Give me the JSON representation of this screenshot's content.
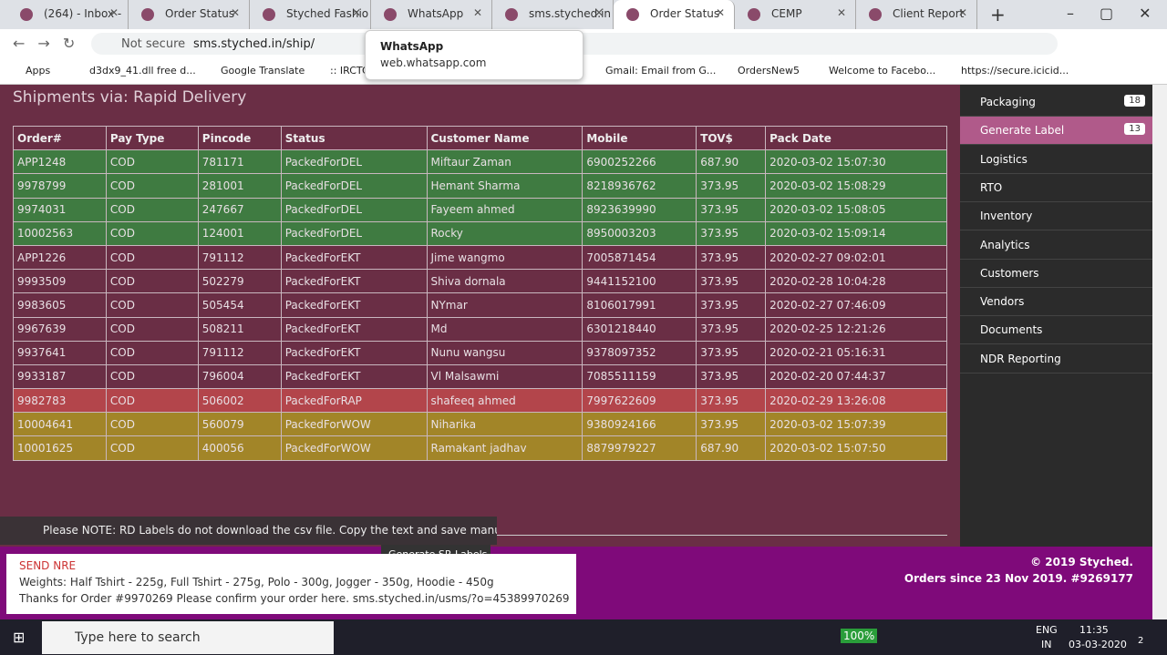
{
  "browser": {
    "tabs": [
      "(264) - Inbox -",
      "Order Status",
      "Styched Fashio",
      "WhatsApp",
      "sms.styched.in",
      "Order Status",
      "CEMP",
      "Client Report"
    ],
    "active_tab": 5,
    "security": "Not secure",
    "address": "sms.styched.in/ship/",
    "bookmarks": [
      "Apps",
      "d3dx9_41.dll free d...",
      "Google Translate",
      ":: IRCTC",
      "Gmail: Email from G...",
      "OrdersNew5",
      "Welcome to Facebo...",
      "https://secure.icicid..."
    ],
    "tooltip": {
      "title": "WhatsApp",
      "url": "web.whatsapp.com"
    }
  },
  "page": {
    "heading": "Shipments via: Rapid Delivery",
    "table": {
      "columns": [
        "Order#",
        "Pay Type",
        "Pincode",
        "Status",
        "Customer Name",
        "Mobile",
        "TOV$",
        "Pack Date"
      ],
      "rows": [
        {
          "cells": [
            "APP1248",
            "COD",
            "781171",
            "PackedForDEL",
            "Miftaur Zaman",
            "6900252266",
            "687.90",
            "2020-03-02 15:07:30"
          ],
          "color": "#3f7b41"
        },
        {
          "cells": [
            "9978799",
            "COD",
            "281001",
            "PackedForDEL",
            "Hemant Sharma",
            "8218936762",
            "373.95",
            "2020-03-02 15:08:29"
          ],
          "color": "#3f7b41"
        },
        {
          "cells": [
            "9974031",
            "COD",
            "247667",
            "PackedForDEL",
            "Fayeem ahmed",
            "8923639990",
            "373.95",
            "2020-03-02 15:08:05"
          ],
          "color": "#3f7b41"
        },
        {
          "cells": [
            "10002563",
            "COD",
            "124001",
            "PackedForDEL",
            "Rocky",
            "8950003203",
            "373.95",
            "2020-03-02 15:09:14"
          ],
          "color": "#3f7b41"
        },
        {
          "cells": [
            "APP1226",
            "COD",
            "791112",
            "PackedForEKT",
            "Jime wangmo",
            "7005871454",
            "373.95",
            "2020-02-27 09:02:01"
          ],
          "color": "#6a2e45"
        },
        {
          "cells": [
            "9993509",
            "COD",
            "502279",
            "PackedForEKT",
            "Shiva dornala",
            "9441152100",
            "373.95",
            "2020-02-28 10:04:28"
          ],
          "color": "#6a2e45"
        },
        {
          "cells": [
            "9983605",
            "COD",
            "505454",
            "PackedForEKT",
            "NYmar",
            "8106017991",
            "373.95",
            "2020-02-27 07:46:09"
          ],
          "color": "#6a2e45"
        },
        {
          "cells": [
            "9967639",
            "COD",
            "508211",
            "PackedForEKT",
            "Md",
            "6301218440",
            "373.95",
            "2020-02-25 12:21:26"
          ],
          "color": "#6a2e45"
        },
        {
          "cells": [
            "9937641",
            "COD",
            "791112",
            "PackedForEKT",
            "Nunu wangsu",
            "9378097352",
            "373.95",
            "2020-02-21 05:16:31"
          ],
          "color": "#6a2e45"
        },
        {
          "cells": [
            "9933187",
            "COD",
            "796004",
            "PackedForEKT",
            "Vl Malsawmi",
            "7085511159",
            "373.95",
            "2020-02-20 07:44:37"
          ],
          "color": "#6a2e45"
        },
        {
          "cells": [
            "9982783",
            "COD",
            "506002",
            "PackedForRAP",
            "shafeeq ahmed",
            "7997622609",
            "373.95",
            "2020-02-29 13:26:08"
          ],
          "color": "#b3454b"
        },
        {
          "cells": [
            "10004641",
            "COD",
            "560079",
            "PackedForWOW",
            "Niharika",
            "9380924166",
            "373.95",
            "2020-03-02 15:07:39"
          ],
          "color": "#a28528"
        },
        {
          "cells": [
            "10001625",
            "COD",
            "400056",
            "PackedForWOW",
            "Ramakant jadhav",
            "8879979227",
            "687.90",
            "2020-03-02 15:07:50"
          ],
          "color": "#a28528"
        }
      ]
    },
    "note": "Please NOTE: RD Labels do not download the csv file. Copy the text and save manually.",
    "button": "Generate SR Labels",
    "footer": [
      "© 2019 Styched.",
      "Orders since 23 Nov 2019. #9269177"
    ],
    "sidebar": [
      {
        "label": "Packaging",
        "badge": "18"
      },
      {
        "label": "Generate Label",
        "badge": "13",
        "active": true
      },
      {
        "label": "Logistics"
      },
      {
        "label": "RTO"
      },
      {
        "label": "Inventory"
      },
      {
        "label": "Analytics"
      },
      {
        "label": "Customers"
      },
      {
        "label": "Vendors"
      },
      {
        "label": "Documents"
      },
      {
        "label": "NDR Reporting"
      }
    ],
    "popup": {
      "title": "SEND NRE",
      "lines": [
        "Weights: Half Tshirt - 225g, Full Tshirt - 275g, Polo - 300g, Jogger - 350g, Hoodie - 450g",
        "Thanks for Order #9970269 Please confirm your order here. sms.styched.in/usms/?o=45389970269"
      ]
    }
  },
  "taskbar": {
    "search": "Type here to search",
    "battery": "100%",
    "lang": [
      "ENG",
      "IN"
    ],
    "time": "11:35",
    "date": "03-03-2020",
    "notifications": "2"
  }
}
